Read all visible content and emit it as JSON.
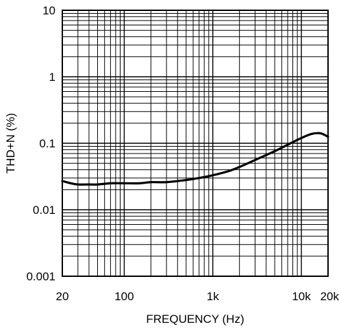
{
  "chart_data": {
    "type": "line",
    "title": "",
    "xlabel": "FREQUENCY (Hz)",
    "ylabel": "THD+N (%)",
    "x_scale": "log",
    "y_scale": "log",
    "xlim": [
      20,
      20000
    ],
    "ylim": [
      0.001,
      10
    ],
    "grid": true,
    "x_ticks": [
      {
        "value": 20,
        "label": "20"
      },
      {
        "value": 100,
        "label": "100"
      },
      {
        "value": 1000,
        "label": "1k"
      },
      {
        "value": 10000,
        "label": "10k"
      },
      {
        "value": 20000,
        "label": "20k"
      }
    ],
    "y_ticks": [
      {
        "value": 10,
        "label": "10"
      },
      {
        "value": 1,
        "label": "1"
      },
      {
        "value": 0.1,
        "label": "0.1"
      },
      {
        "value": 0.01,
        "label": "0.01"
      },
      {
        "value": 0.001,
        "label": "0.001"
      }
    ],
    "series": [
      {
        "x": [
          20,
          25,
          30,
          40,
          50,
          70,
          100,
          150,
          200,
          300,
          500,
          700,
          1000,
          1500,
          2000,
          3000,
          5000,
          7000,
          10000,
          13000,
          16000,
          18000,
          20000
        ],
        "y": [
          0.027,
          0.025,
          0.024,
          0.024,
          0.024,
          0.025,
          0.025,
          0.025,
          0.026,
          0.026,
          0.028,
          0.03,
          0.033,
          0.038,
          0.044,
          0.056,
          0.076,
          0.095,
          0.12,
          0.138,
          0.142,
          0.135,
          0.125
        ]
      }
    ]
  }
}
